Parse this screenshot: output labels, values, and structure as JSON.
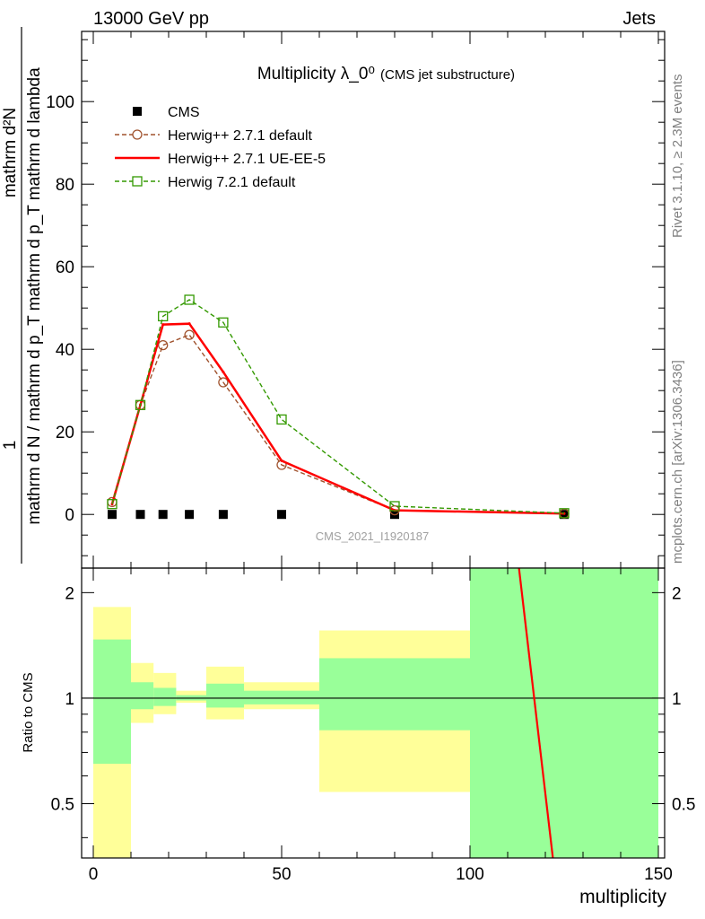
{
  "header": {
    "left": "13000 GeV pp",
    "right": "Jets"
  },
  "side_labels": {
    "top": "Rivet 3.1.10, ≥ 2.3M events",
    "bottom": "mcplots.cern.ch [arXiv:1306.3436]"
  },
  "watermark": "CMS_2021_I1920187",
  "chart_data": [
    {
      "type": "line",
      "title": "Multiplicity λ_0⁰",
      "subtitle": "(CMS jet substructure)",
      "ylabel_numerator": "1",
      "ylabel_denominator": "mathrm d N / mathrm d p_T mathrm d p_T mathrm d lambda",
      "ylabel_top": "mathrm d²N",
      "ylim": [
        -13,
        117
      ],
      "xlim": [
        -3,
        150
      ],
      "yticks": [
        0,
        20,
        40,
        60,
        80,
        100
      ],
      "xticks": [
        0,
        50,
        100,
        150
      ],
      "series": [
        {
          "name": "CMS",
          "color": "#000000",
          "marker": "filled-square",
          "x": [
            5,
            12.5,
            18.5,
            25.5,
            34.5,
            50,
            80,
            125
          ],
          "y": [
            0,
            0,
            0,
            0,
            0,
            0,
            0,
            0
          ]
        },
        {
          "name": "Herwig++ 2.7.1 default",
          "color": "#a0522d",
          "marker": "open-circle",
          "dash": "dashed",
          "x": [
            5,
            12.5,
            18.5,
            25.5,
            34.5,
            50,
            80,
            125
          ],
          "y": [
            3.0,
            26.5,
            41.0,
            43.5,
            32.0,
            12.0,
            1.0,
            0.2
          ]
        },
        {
          "name": "Herwig++ 2.7.1 UE-EE-5",
          "color": "#ff0000",
          "marker": "none",
          "dash": "solid",
          "x": [
            5,
            12.5,
            18.5,
            25.5,
            34.5,
            50,
            80,
            125
          ],
          "y": [
            2.5,
            26.5,
            46.0,
            46.2,
            34.5,
            13.0,
            1.0,
            0.2
          ]
        },
        {
          "name": "Herwig 7.2.1 default",
          "color": "#339900",
          "marker": "open-square",
          "dash": "dashed",
          "x": [
            5,
            12.5,
            18.5,
            25.5,
            34.5,
            50,
            80,
            125
          ],
          "y": [
            2.5,
            26.5,
            48.0,
            52.0,
            46.5,
            23.0,
            2.0,
            0.3
          ]
        }
      ]
    },
    {
      "type": "area",
      "ylabel": "Ratio to CMS",
      "xlabel": "multiplicity",
      "ylim": [
        0.35,
        2.35
      ],
      "xlim": [
        -3,
        150
      ],
      "yticks": [
        0.5,
        1,
        2
      ],
      "xticks": [
        0,
        50,
        100,
        150
      ],
      "bins": [
        {
          "x0": 0,
          "x1": 10,
          "green": [
            0.65,
            1.47
          ],
          "yellow": [
            0.35,
            1.82
          ]
        },
        {
          "x0": 10,
          "x1": 16,
          "green": [
            0.93,
            1.11
          ],
          "yellow": [
            0.85,
            1.26
          ]
        },
        {
          "x0": 16,
          "x1": 22,
          "green": [
            0.95,
            1.07
          ],
          "yellow": [
            0.9,
            1.18
          ]
        },
        {
          "x0": 22,
          "x1": 30,
          "green": [
            0.985,
            1.02
          ],
          "yellow": [
            0.97,
            1.05
          ]
        },
        {
          "x0": 30,
          "x1": 40,
          "green": [
            0.94,
            1.1
          ],
          "yellow": [
            0.87,
            1.23
          ]
        },
        {
          "x0": 40,
          "x1": 60,
          "green": [
            0.96,
            1.05
          ],
          "yellow": [
            0.93,
            1.11
          ]
        },
        {
          "x0": 60,
          "x1": 100,
          "green": [
            0.81,
            1.3
          ],
          "yellow": [
            0.54,
            1.56
          ]
        },
        {
          "x0": 100,
          "x1": 150,
          "green": [
            0.35,
            2.35
          ],
          "yellow": [
            0.35,
            2.35
          ]
        }
      ],
      "ratio_line": {
        "color": "#ff0000",
        "x": [
          113,
          122
        ],
        "y": [
          2.35,
          0.35
        ]
      }
    }
  ]
}
